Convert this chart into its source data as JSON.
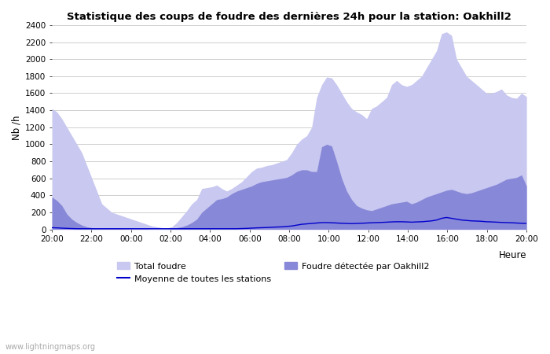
{
  "title": "Statistique des coups de foudre des dernières 24h pour la station: Oakhill2",
  "xlabel": "Heure",
  "ylabel": "Nb /h",
  "watermark": "www.lightningmaps.org",
  "legend": {
    "total_foudre": "Total foudre",
    "foudre_detectee": "Foudre détectée par Oakhill2",
    "moyenne": "Moyenne de toutes les stations"
  },
  "x_ticks": [
    "20:00",
    "22:00",
    "00:00",
    "02:00",
    "04:00",
    "06:00",
    "08:00",
    "10:00",
    "12:00",
    "14:00",
    "16:00",
    "18:00",
    "20:00"
  ],
  "ylim": [
    0,
    2400
  ],
  "yticks": [
    0,
    200,
    400,
    600,
    800,
    1000,
    1200,
    1400,
    1600,
    1800,
    2000,
    2200,
    2400
  ],
  "color_total": "#c8c8f0",
  "color_detected": "#8888d8",
  "color_mean": "#0000cc",
  "bg_color": "#ffffff",
  "total_foudre": [
    1420,
    1380,
    1300,
    1200,
    1100,
    1000,
    900,
    750,
    600,
    450,
    300,
    250,
    200,
    180,
    160,
    140,
    120,
    100,
    80,
    60,
    40,
    30,
    20,
    15,
    30,
    80,
    150,
    220,
    300,
    350,
    480,
    490,
    500,
    520,
    480,
    450,
    480,
    520,
    560,
    620,
    680,
    720,
    730,
    750,
    760,
    780,
    800,
    820,
    900,
    1000,
    1060,
    1100,
    1200,
    1550,
    1700,
    1790,
    1780,
    1700,
    1600,
    1500,
    1420,
    1380,
    1350,
    1300,
    1420,
    1450,
    1500,
    1550,
    1700,
    1750,
    1700,
    1680,
    1700,
    1750,
    1800,
    1900,
    2000,
    2100,
    2300,
    2320,
    2280,
    2000,
    1900,
    1800,
    1750,
    1700,
    1650,
    1600,
    1600,
    1620,
    1650,
    1580,
    1550,
    1540,
    1600,
    1560
  ],
  "foudre_detectee": [
    380,
    340,
    280,
    180,
    120,
    80,
    50,
    30,
    20,
    15,
    10,
    10,
    10,
    10,
    10,
    8,
    8,
    8,
    8,
    8,
    5,
    5,
    5,
    5,
    10,
    20,
    30,
    50,
    80,
    120,
    200,
    250,
    300,
    350,
    360,
    380,
    420,
    450,
    470,
    490,
    510,
    540,
    560,
    570,
    580,
    590,
    600,
    610,
    640,
    680,
    700,
    700,
    680,
    680,
    970,
    1000,
    980,
    800,
    600,
    450,
    350,
    280,
    250,
    230,
    220,
    240,
    260,
    280,
    300,
    310,
    320,
    330,
    300,
    320,
    350,
    380,
    400,
    420,
    440,
    460,
    470,
    450,
    430,
    420,
    430,
    450,
    470,
    490,
    510,
    530,
    560,
    590,
    600,
    610,
    640,
    510
  ],
  "moyenne": [
    20,
    18,
    15,
    12,
    10,
    8,
    8,
    8,
    8,
    8,
    8,
    8,
    8,
    8,
    8,
    8,
    8,
    8,
    8,
    8,
    8,
    8,
    8,
    8,
    8,
    8,
    8,
    8,
    8,
    8,
    8,
    8,
    8,
    8,
    8,
    8,
    8,
    8,
    10,
    12,
    15,
    18,
    20,
    22,
    25,
    28,
    30,
    35,
    40,
    50,
    60,
    65,
    70,
    75,
    80,
    80,
    78,
    75,
    72,
    70,
    68,
    70,
    72,
    75,
    78,
    80,
    82,
    85,
    88,
    90,
    90,
    88,
    85,
    88,
    90,
    95,
    100,
    110,
    130,
    140,
    130,
    120,
    110,
    105,
    100,
    98,
    95,
    90,
    88,
    85,
    82,
    80,
    78,
    75,
    72,
    70
  ]
}
